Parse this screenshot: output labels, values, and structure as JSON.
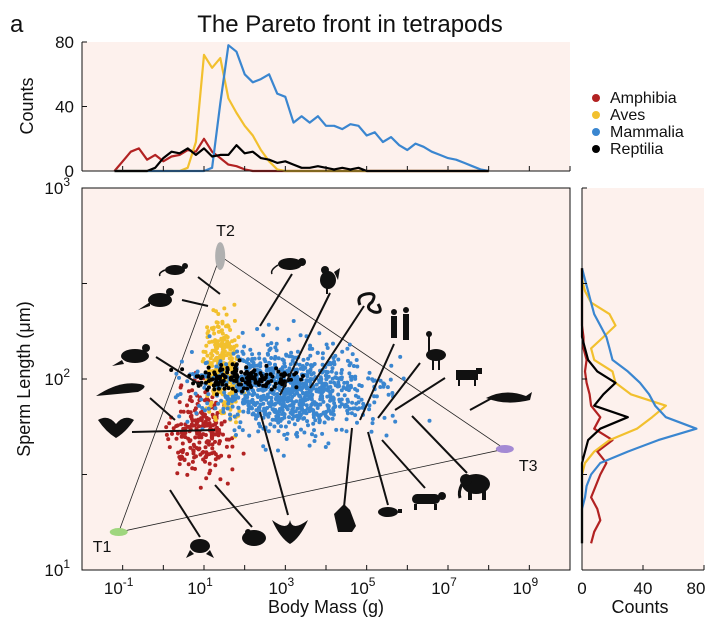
{
  "panel_label": "a",
  "title": "The Pareto front in tetrapods",
  "colors": {
    "Amphibia": "#b22222",
    "Aves": "#f2c02e",
    "Mammalia": "#3a86d0",
    "Reptilia": "#000000",
    "background": "#fdf1ed",
    "T1": "#9fd67e",
    "T2": "#b0b0b0",
    "T3": "#a48ad4"
  },
  "legend": {
    "placement": "right",
    "items": [
      {
        "label": "Amphibia",
        "color": "#b22222"
      },
      {
        "label": "Aves",
        "color": "#f2c02e"
      },
      {
        "label": "Mammalia",
        "color": "#3a86d0"
      },
      {
        "label": "Reptilia",
        "color": "#000000"
      }
    ]
  },
  "silhouettes": [
    "mouse-silhouette",
    "rat-silhouette",
    "rooster-silhouette",
    "snake-silhouette",
    "humans-silhouette",
    "ostrich-silhouette",
    "cow-silhouette",
    "whale-silhouette",
    "finch-silhouette",
    "crow-silhouette",
    "lizard-silhouette",
    "bat-silhouette",
    "frog-silhouette",
    "toad-silhouette",
    "eagle-silhouette",
    "wolf-silhouette",
    "pig-silhouette",
    "tiger-silhouette",
    "elephant-silhouette"
  ],
  "chart_data": [
    {
      "type": "line",
      "role": "top-histogram",
      "ylabel": "Counts",
      "yticks": [
        "0",
        "40",
        "80"
      ],
      "ylim": [
        0,
        80
      ],
      "xlim_log10": [
        -2,
        10
      ],
      "x_log10": [
        -1.2,
        -1.0,
        -0.8,
        -0.6,
        -0.4,
        -0.2,
        0.0,
        0.2,
        0.4,
        0.6,
        0.8,
        1.0,
        1.2,
        1.4,
        1.6,
        1.8,
        2.0,
        2.2,
        2.4,
        2.6,
        2.8,
        3.0,
        3.2,
        3.4,
        3.6,
        3.8,
        4.0,
        4.2,
        4.4,
        4.6,
        4.8,
        5.0,
        5.2,
        5.4,
        5.6,
        5.8,
        6.0,
        6.2,
        6.4,
        6.6,
        6.8,
        7.0,
        7.2,
        7.4,
        7.6,
        7.8,
        8.0
      ],
      "series": [
        {
          "name": "Amphibia",
          "color": "#b22222",
          "values": [
            0,
            6,
            12,
            14,
            7,
            10,
            6,
            9,
            10,
            13,
            12,
            20,
            12,
            8,
            4,
            3,
            1,
            0,
            0,
            0,
            0,
            0,
            0,
            0,
            0,
            0,
            0,
            0,
            0,
            0,
            0,
            0,
            0,
            0,
            0,
            0,
            0,
            0,
            0,
            0,
            0,
            0,
            0,
            0,
            0,
            0,
            0
          ]
        },
        {
          "name": "Aves",
          "color": "#f2c02e",
          "values": [
            0,
            0,
            0,
            0,
            0,
            0,
            0,
            0,
            0,
            2,
            18,
            72,
            64,
            70,
            45,
            36,
            28,
            22,
            13,
            6,
            1,
            0,
            0,
            0,
            0,
            0,
            0,
            0,
            0,
            0,
            0,
            0,
            0,
            0,
            0,
            0,
            0,
            0,
            0,
            0,
            0,
            0,
            0,
            0,
            0,
            0,
            0
          ]
        },
        {
          "name": "Mammalia",
          "color": "#3a86d0",
          "values": [
            0,
            0,
            0,
            0,
            0,
            0,
            0,
            0,
            0,
            0,
            0,
            0,
            2,
            42,
            78,
            74,
            60,
            55,
            57,
            60,
            48,
            46,
            30,
            34,
            30,
            34,
            28,
            28,
            26,
            29,
            28,
            22,
            24,
            18,
            21,
            16,
            13,
            17,
            15,
            12,
            10,
            8,
            7,
            5,
            3,
            1,
            0
          ]
        },
        {
          "name": "Reptilia",
          "color": "#000000",
          "values": [
            0,
            0,
            0,
            0,
            0,
            2,
            8,
            12,
            11,
            14,
            10,
            14,
            9,
            10,
            10,
            16,
            11,
            12,
            8,
            7,
            5,
            6,
            4,
            2,
            2,
            3,
            2,
            1,
            2,
            1,
            2,
            0,
            0,
            0,
            0,
            0,
            0,
            0,
            0,
            0,
            0,
            0,
            0,
            0,
            0,
            0,
            0
          ]
        }
      ]
    },
    {
      "type": "scatter",
      "role": "main-scatter",
      "xlabel": "Body Mass (g)",
      "ylabel": "Sperm Length (μm)",
      "x_scale": "log",
      "y_scale": "log",
      "xlim": [
        0.01,
        10000000000
      ],
      "ylim": [
        10,
        1000
      ],
      "xtick_labels": [
        {
          "base": "10",
          "exp": "-1",
          "value": 0.1
        },
        {
          "base": "10",
          "exp": "1",
          "value": 10
        },
        {
          "base": "10",
          "exp": "3",
          "value": 1000
        },
        {
          "base": "10",
          "exp": "5",
          "value": 100000
        },
        {
          "base": "10",
          "exp": "7",
          "value": 10000000
        },
        {
          "base": "10",
          "exp": "9",
          "value": 1000000000
        }
      ],
      "ytick_labels": [
        {
          "base": "10",
          "exp": "1",
          "value": 10
        },
        {
          "base": "10",
          "exp": "2",
          "value": 100
        },
        {
          "base": "10",
          "exp": "3",
          "value": 1000
        }
      ],
      "grid": false,
      "archetypes": [
        {
          "label": "T1",
          "x": 0.08,
          "y": 15.8,
          "color": "#9fd67e"
        },
        {
          "label": "T2",
          "x": 25,
          "y": 440,
          "color": "#b0b0b0"
        },
        {
          "label": "T3",
          "x": 250000000,
          "y": 43,
          "color": "#a48ad4"
        }
      ],
      "series": [
        {
          "name": "Amphibia",
          "color": "#b22222",
          "n": 230,
          "center_log10": [
            0.9,
            1.72
          ],
          "spread_log10": [
            0.55,
            0.16
          ]
        },
        {
          "name": "Aves",
          "color": "#f2c02e",
          "n": 300,
          "center_log10": [
            1.45,
            2.08
          ],
          "spread_log10": [
            0.3,
            0.17
          ]
        },
        {
          "name": "Mammalia",
          "color": "#3a86d0",
          "n": 900,
          "center_log10": [
            3.2,
            1.94
          ],
          "spread_log10": [
            1.5,
            0.16
          ]
        },
        {
          "name": "Reptilia",
          "color": "#000000",
          "n": 160,
          "center_log10": [
            2.0,
            2.0
          ],
          "spread_log10": [
            0.9,
            0.05
          ]
        }
      ]
    },
    {
      "type": "line",
      "role": "right-histogram",
      "xlabel": "Counts",
      "xticks": [
        "0",
        "40",
        "80"
      ],
      "xlim": [
        0,
        80
      ],
      "y_log10": [
        1.14,
        1.2,
        1.26,
        1.32,
        1.38,
        1.44,
        1.5,
        1.56,
        1.62,
        1.68,
        1.74,
        1.8,
        1.86,
        1.92,
        1.98,
        2.04,
        2.1,
        2.16,
        2.22,
        2.28,
        2.34,
        2.4,
        2.46,
        2.52,
        2.58
      ],
      "series": [
        {
          "name": "Amphibia",
          "color": "#b22222",
          "values": [
            6,
            8,
            12,
            10,
            6,
            9,
            12,
            16,
            10,
            20,
            8,
            12,
            6,
            5,
            3,
            2,
            3,
            1,
            1,
            0,
            0,
            0,
            0,
            0,
            0
          ]
        },
        {
          "name": "Aves",
          "color": "#f2c02e",
          "values": [
            0,
            0,
            0,
            0,
            0,
            0,
            0,
            2,
            8,
            18,
            36,
            46,
            55,
            32,
            22,
            20,
            8,
            6,
            14,
            22,
            18,
            6,
            2,
            0,
            0
          ]
        },
        {
          "name": "Mammalia",
          "color": "#3a86d0",
          "values": [
            0,
            0,
            0,
            0,
            2,
            3,
            6,
            12,
            30,
            50,
            75,
            55,
            48,
            44,
            38,
            30,
            20,
            18,
            16,
            12,
            8,
            6,
            4,
            2,
            0
          ]
        },
        {
          "name": "Reptilia",
          "color": "#000000",
          "values": [
            0,
            0,
            0,
            0,
            0,
            0,
            0,
            0,
            2,
            4,
            12,
            30,
            8,
            14,
            22,
            10,
            4,
            2,
            0,
            0,
            0,
            0,
            0,
            0,
            0
          ]
        }
      ]
    }
  ]
}
